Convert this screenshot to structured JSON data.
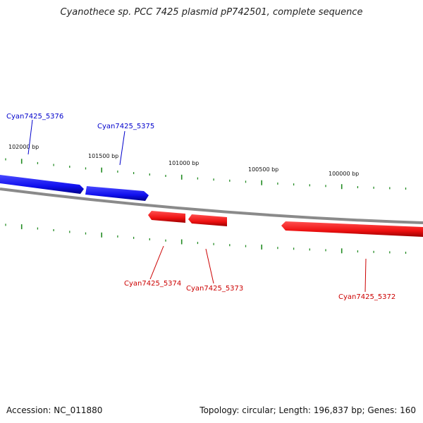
{
  "title": "Cyanothece sp. PCC 7425 plasmid pP742501, complete sequence",
  "footer": {
    "accession": "Accession: NC_011880",
    "summary": "Topology: circular; Length: 196,837 bp; Genes: 160"
  },
  "colors": {
    "forward_gene": "#1010ee",
    "reverse_gene": "#ee1111",
    "backbone": "#888888",
    "ticks": "#228b22",
    "forward_label": "#0000cc",
    "reverse_label": "#cc0000"
  },
  "scale_labels": [
    "102000 bp",
    "101500 bp",
    "101000 bp",
    "100500 bp",
    "100000 bp"
  ],
  "genes": [
    {
      "name": "Cyan7425_5376",
      "strand": "forward"
    },
    {
      "name": "Cyan7425_5375",
      "strand": "forward"
    },
    {
      "name": "Cyan7425_5374",
      "strand": "reverse"
    },
    {
      "name": "Cyan7425_5373",
      "strand": "reverse"
    },
    {
      "name": "Cyan7425_5372",
      "strand": "reverse"
    }
  ]
}
